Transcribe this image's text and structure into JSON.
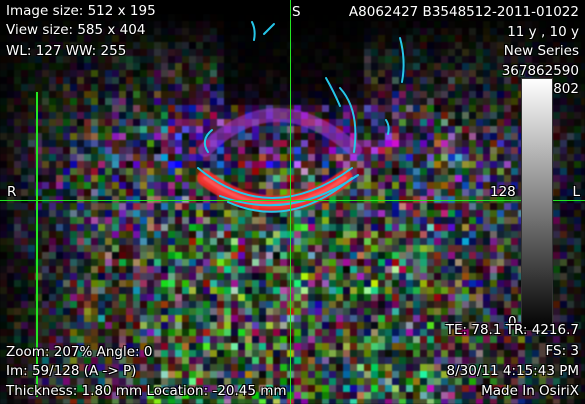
{
  "overlay": {
    "image_size": "Image size: 512 x 195",
    "view_size": "View size: 585 x 404",
    "wl_ww": "WL: 127 WW: 255",
    "orientation_top": "S",
    "patient_id": "A8062427 B3548512-2011-01022",
    "age": "11 y , 10 y",
    "series": "New Series",
    "series_number_a": "367862590",
    "series_number_b": "802",
    "orientation_left": "R",
    "orientation_right": "L",
    "colorbar_mid": "128",
    "colorbar_low": "0",
    "te_tr": "TE:  78.1 TR:  4216.7",
    "fs": "FS:  3",
    "zoom_angle": "Zoom: 207% Angle: 0",
    "image_index": "Im: 59/128  (A -> P)",
    "datetime": "8/30/11 4:15:43 PM",
    "thickness_location": "Thickness: 1.80 mm Location: -20.45 mm",
    "made_in": "Made In OsiriX"
  },
  "colors": {
    "overlay_text": "#ffffff",
    "crosshair": "#22e522",
    "fiber_tracts": "#26c6e8",
    "background": "#000000"
  },
  "icons": [
    "colorbar-scale",
    "crosshair-lines",
    "fiber-tract-overlay"
  ]
}
